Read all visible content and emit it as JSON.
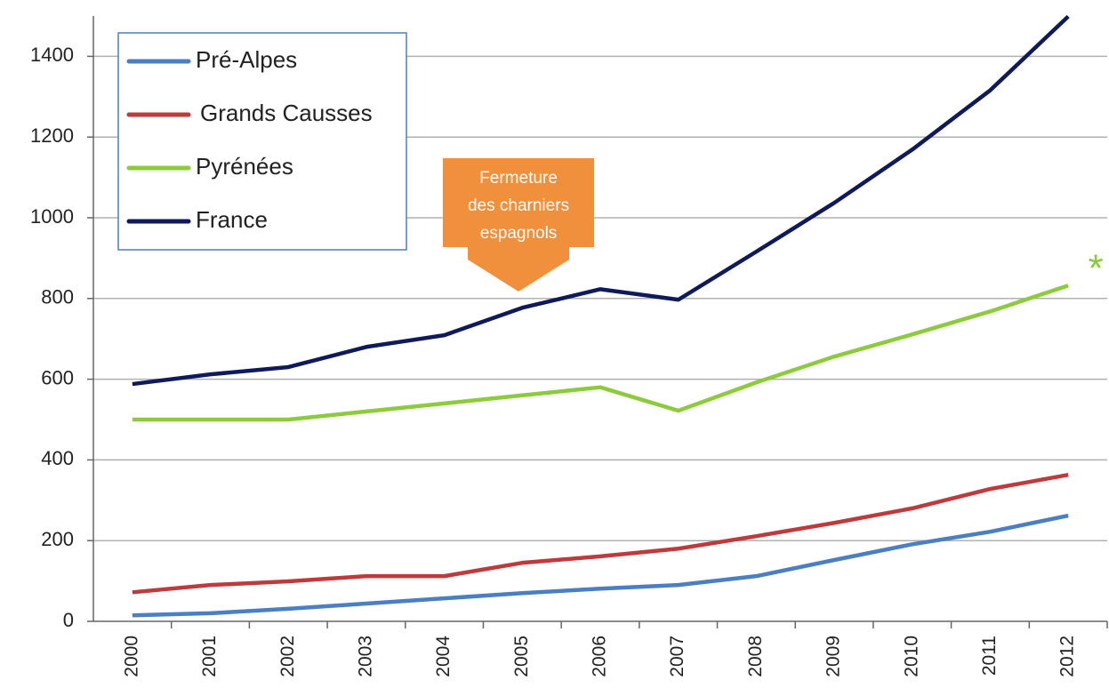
{
  "chart_data": {
    "type": "line",
    "categories": [
      "2000",
      "2001",
      "2002",
      "2003",
      "2004",
      "2005",
      "2006",
      "2007",
      "2008",
      "2009",
      "2010",
      "2011",
      "2012"
    ],
    "series": [
      {
        "name": "Pré-Alpes",
        "color": "#4a7fc4",
        "values": [
          15,
          20,
          31,
          44,
          57,
          70,
          81,
          90,
          112,
          152,
          191,
          222,
          262
        ]
      },
      {
        "name": "Grands Causses",
        "color": "#bf3b3b",
        "values": [
          72,
          90,
          99,
          112,
          112,
          145,
          161,
          180,
          211,
          244,
          280,
          328,
          363
        ]
      },
      {
        "name": "Pyrénées",
        "color": "#8ccc3c",
        "values": [
          500,
          500,
          500,
          520,
          540,
          560,
          580,
          522,
          592,
          656,
          711,
          768,
          832
        ]
      },
      {
        "name": "France",
        "color": "#0f1a5c",
        "values": [
          588,
          612,
          630,
          680,
          709,
          777,
          823,
          797,
          916,
          1037,
          1169,
          1316,
          1499
        ]
      }
    ],
    "ylim": [
      0,
      1500
    ],
    "yticks": [
      0,
      200,
      400,
      600,
      800,
      1000,
      1200,
      1400
    ],
    "grid": true,
    "annotations": [
      {
        "text": [
          "Fermeture",
          "des charniers",
          "espagnols"
        ],
        "color": "#f0903c"
      },
      {
        "text": "*",
        "color": "#8ccc3c"
      }
    ]
  }
}
